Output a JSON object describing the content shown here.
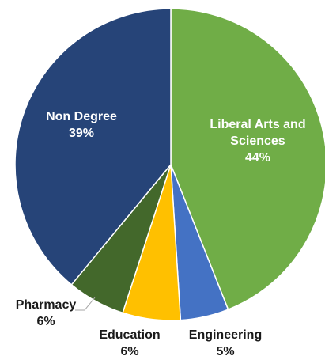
{
  "chart_data": {
    "type": "pie",
    "title": "",
    "slices": [
      {
        "label_lines": [
          "Liberal Arts and",
          "Sciences"
        ],
        "pct_label": "44%",
        "value": 44,
        "color": "#70AD47",
        "label_color": "#ffffff"
      },
      {
        "label_lines": [
          "Engineering"
        ],
        "pct_label": "5%",
        "value": 5,
        "color": "#4472C4",
        "label_color": "#1a1a1a"
      },
      {
        "label_lines": [
          "Education"
        ],
        "pct_label": "6%",
        "value": 6,
        "color": "#FFC000",
        "label_color": "#1a1a1a"
      },
      {
        "label_lines": [
          "Pharmacy"
        ],
        "pct_label": "6%",
        "value": 6,
        "color": "#43682B",
        "label_color": "#1a1a1a"
      },
      {
        "label_lines": [
          "Non Degree"
        ],
        "pct_label": "39%",
        "value": 39,
        "color": "#264478",
        "label_color": "#ffffff"
      }
    ]
  }
}
